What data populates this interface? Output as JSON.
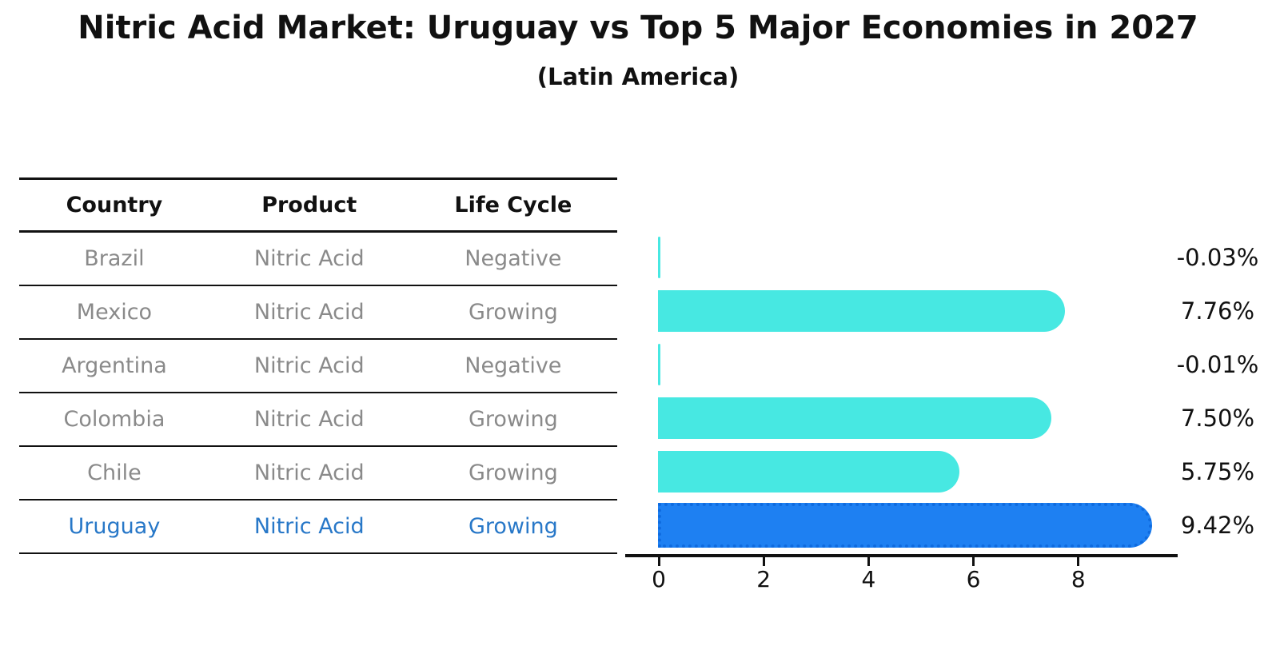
{
  "title": "Nitric Acid Market: Uruguay vs Top 5 Major Economies in 2027",
  "subtitle": "(Latin America)",
  "table": {
    "headers": [
      "Country",
      "Product",
      "Life Cycle"
    ],
    "rows": [
      {
        "country": "Brazil",
        "product": "Nitric Acid",
        "life_cycle": "Negative",
        "highlight": false
      },
      {
        "country": "Mexico",
        "product": "Nitric Acid",
        "life_cycle": "Growing",
        "highlight": false
      },
      {
        "country": "Argentina",
        "product": "Nitric Acid",
        "life_cycle": "Negative",
        "highlight": false
      },
      {
        "country": "Colombia",
        "product": "Nitric Acid",
        "life_cycle": "Growing",
        "highlight": false
      },
      {
        "country": "Chile",
        "product": "Nitric Acid",
        "life_cycle": "Growing",
        "highlight": false
      },
      {
        "country": "Uruguay",
        "product": "Nitric Acid",
        "life_cycle": "Growing",
        "highlight": true
      }
    ]
  },
  "chart_data": {
    "type": "bar",
    "orientation": "horizontal",
    "title": "Nitric Acid Market: Uruguay vs Top 5 Major Economies in 2027",
    "subtitle": "(Latin America)",
    "categories": [
      "Brazil",
      "Mexico",
      "Argentina",
      "Colombia",
      "Chile",
      "Uruguay"
    ],
    "values": [
      -0.03,
      7.76,
      -0.01,
      7.5,
      5.75,
      9.42
    ],
    "value_labels": [
      "-0.03%",
      "7.76%",
      "-0.01%",
      "7.50%",
      "5.75%",
      "9.42%"
    ],
    "x_ticks": [
      0,
      2,
      4,
      6,
      8
    ],
    "xlim": [
      0,
      9.9
    ],
    "grid": false,
    "legend": "none",
    "bar_color": "#47e8e2",
    "highlight_index": 5,
    "highlight_color": "#1e80f2",
    "highlight_border_color": "#0f6bdf",
    "highlight_text_color": "#2878c8"
  }
}
